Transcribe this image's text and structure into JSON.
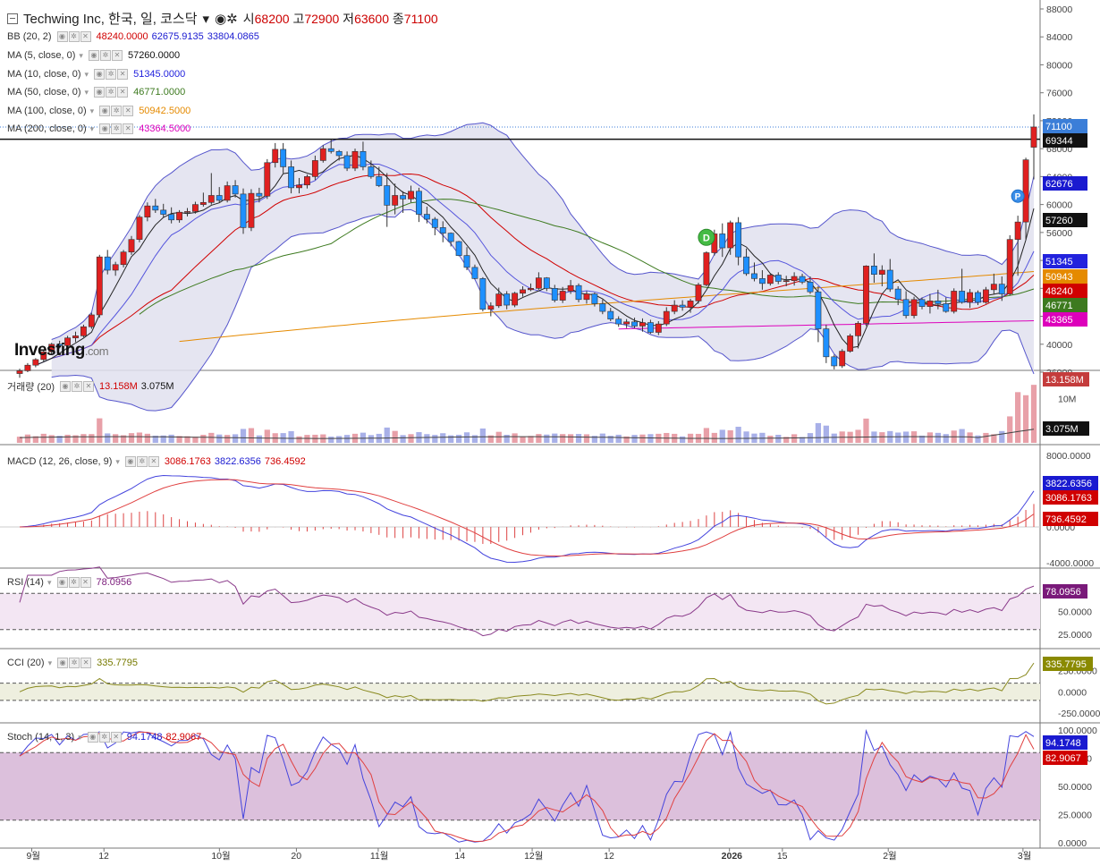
{
  "header": {
    "title": "Techwing Inc, 한국, 일, 코스닥",
    "open_label": "시",
    "open": "68200",
    "high_label": "고",
    "high": "72900",
    "low_label": "저",
    "low": "63600",
    "close_label": "종",
    "close": "71100"
  },
  "brand": {
    "logo": "Investing",
    "logo_suffix": ".com"
  },
  "legends": {
    "bb": {
      "name": "BB (20, 2)",
      "values": [
        "48240.0000",
        "62675.9135",
        "33804.0865"
      ],
      "colors": [
        "#d00000",
        "#1a1ad0",
        "#1a1ad0"
      ]
    },
    "ma5": {
      "name": "MA (5, close, 0)",
      "value": "57260.0000",
      "color": "#111111"
    },
    "ma10": {
      "name": "MA (10, close, 0)",
      "value": "51345.0000",
      "color": "#2222dd"
    },
    "ma50": {
      "name": "MA (50, close, 0)",
      "value": "46771.0000",
      "color": "#3d7a1f"
    },
    "ma100": {
      "name": "MA (100, close, 0)",
      "value": "50942.5000",
      "color": "#e58a00"
    },
    "ma200": {
      "name": "MA (200, close, 0)",
      "value": "43364.5000",
      "color": "#dd00bb"
    },
    "vol": {
      "name": "거래량 (20)",
      "values": [
        "13.158M",
        "3.075M"
      ],
      "colors": [
        "#d00000",
        "#111111"
      ]
    },
    "macd": {
      "name": "MACD (12, 26, close, 9)",
      "values": [
        "3086.1763",
        "3822.6356",
        "736.4592"
      ],
      "colors": [
        "#d00000",
        "#1a1ad0",
        "#d00000"
      ]
    },
    "rsi": {
      "name": "RSI (14)",
      "value": "78.0956",
      "color": "#7a1a7a"
    },
    "cci": {
      "name": "CCI (20)",
      "value": "335.7795",
      "color": "#777a00"
    },
    "stoch": {
      "name": "Stoch (14, 1, 3)",
      "values": [
        "94.1748",
        "82.9067"
      ],
      "colors": [
        "#1a1ad0",
        "#d00000"
      ]
    }
  },
  "price_axis": {
    "ticks": [
      "88000",
      "84000",
      "80000",
      "76000",
      "72000",
      "68000",
      "64000",
      "60000",
      "56000",
      "52000",
      "48000",
      "44000",
      "40000",
      "36000"
    ]
  },
  "price_badges": [
    {
      "label": "71100",
      "value": 71100,
      "bg": "#3b7ed8"
    },
    {
      "label": "69344",
      "value": 69344,
      "bg": "#111111"
    },
    {
      "label": "62676",
      "value": 62676,
      "bg": "#1a1ad0"
    },
    {
      "label": "57260",
      "value": 57260,
      "bg": "#111111"
    },
    {
      "label": "51345",
      "value": 51345,
      "bg": "#2222dd"
    },
    {
      "label": "50943",
      "value": 50943,
      "bg": "#e58a00"
    },
    {
      "label": "48240",
      "value": 48240,
      "bg": "#d00000"
    },
    {
      "label": "46771",
      "value": 46771,
      "bg": "#3d7a1f"
    },
    {
      "label": "43365",
      "value": 43365,
      "bg": "#dd00bb"
    }
  ],
  "volume_axis": {
    "ticks": [
      "10M"
    ],
    "badges": [
      {
        "label": "13.158M",
        "bg": "#c43c3c"
      },
      {
        "label": "3.075M",
        "bg": "#111111"
      }
    ]
  },
  "macd_axis": {
    "ticks": [
      "8000.0000",
      "0.0000",
      "-4000.0000"
    ],
    "badges": [
      {
        "label": "3822.6356",
        "bg": "#1a1ad0"
      },
      {
        "label": "3086.1763",
        "bg": "#d00000"
      },
      {
        "label": "736.4592",
        "bg": "#d00000"
      }
    ]
  },
  "rsi_axis": {
    "ticks": [
      "50.0000",
      "25.0000"
    ],
    "badge": "78.0956",
    "badge_bg": "#7a1a7a"
  },
  "cci_axis": {
    "ticks": [
      "250.0000",
      "0.0000",
      "-250.0000"
    ],
    "badge": "335.7795",
    "badge_bg": "#8a8a00"
  },
  "stoch_axis": {
    "ticks": [
      "100.0000",
      "75.0000",
      "50.0000",
      "25.0000",
      "0.0000"
    ],
    "badges": [
      {
        "label": "94.1748",
        "bg": "#1a1ad0"
      },
      {
        "label": "82.9067",
        "bg": "#d00000"
      }
    ]
  },
  "markers": [
    {
      "label": "D",
      "color": "#44bb44"
    },
    {
      "label": "P",
      "color": "#3b8ee8"
    }
  ],
  "time_axis": {
    "labels": [
      "9월",
      "12",
      "10월",
      "20",
      "11월",
      "14",
      "12월",
      "12",
      "2026",
      "15",
      "2월",
      "3월"
    ]
  },
  "colors": {
    "up": "#e02020",
    "down": "#1e90ff",
    "bb_fill": "#e0e0ef",
    "bb_line": "#5555cc"
  },
  "chart_data": {
    "type": "candlestick",
    "note_series": "daily candles, ~117 sessions from late Aug to early Mar",
    "ohlc": [
      [
        35800,
        36500,
        35200,
        36200
      ],
      [
        36200,
        37300,
        36000,
        37000
      ],
      [
        37000,
        38000,
        36700,
        37800
      ],
      [
        37800,
        39200,
        37500,
        38900
      ],
      [
        38900,
        40200,
        38600,
        40000
      ],
      [
        40000,
        40500,
        39400,
        39800
      ],
      [
        39800,
        41200,
        39600,
        40900
      ],
      [
        40900,
        41800,
        40300,
        41200
      ],
      [
        41200,
        42800,
        41000,
        42500
      ],
      [
        42500,
        44500,
        42200,
        44200
      ],
      [
        44200,
        52800,
        43800,
        52500
      ],
      [
        52500,
        53500,
        50000,
        50600
      ],
      [
        50600,
        51800,
        49800,
        51400
      ],
      [
        51400,
        53500,
        51000,
        53200
      ],
      [
        53200,
        55500,
        52800,
        55000
      ],
      [
        55000,
        58500,
        54600,
        58200
      ],
      [
        58200,
        60300,
        57600,
        59800
      ],
      [
        59800,
        60800,
        58800,
        59200
      ],
      [
        59200,
        60100,
        58200,
        58600
      ],
      [
        58600,
        59600,
        57300,
        57800
      ],
      [
        57800,
        59200,
        57400,
        58900
      ],
      [
        58900,
        59500,
        58300,
        59000
      ],
      [
        59000,
        60400,
        58700,
        60000
      ],
      [
        60000,
        61700,
        59700,
        60300
      ],
      [
        60300,
        64500,
        60000,
        61300
      ],
      [
        61300,
        62500,
        60300,
        60600
      ],
      [
        60600,
        63300,
        60300,
        62700
      ],
      [
        62700,
        63500,
        61000,
        61500
      ],
      [
        61500,
        62300,
        55800,
        56700
      ],
      [
        56700,
        62200,
        56200,
        61600
      ],
      [
        61600,
        62400,
        60300,
        61200
      ],
      [
        61200,
        66500,
        60800,
        66000
      ],
      [
        66000,
        68800,
        65300,
        67900
      ],
      [
        67900,
        68800,
        64500,
        65400
      ],
      [
        65400,
        66300,
        61600,
        62400
      ],
      [
        62400,
        63800,
        61600,
        62800
      ],
      [
        62800,
        64300,
        62300,
        64000
      ],
      [
        64000,
        67000,
        63500,
        66300
      ],
      [
        66300,
        68500,
        66000,
        68000
      ],
      [
        68000,
        69300,
        67300,
        67600
      ],
      [
        67600,
        67800,
        66300,
        67000
      ],
      [
        67000,
        67600,
        64800,
        65200
      ],
      [
        65200,
        68000,
        64800,
        67600
      ],
      [
        67600,
        69000,
        64900,
        65400
      ],
      [
        65400,
        66300,
        63700,
        64000
      ],
      [
        64000,
        65400,
        62500,
        62700
      ],
      [
        62700,
        64500,
        56800,
        59900
      ],
      [
        59900,
        63000,
        58600,
        61300
      ],
      [
        61300,
        61900,
        58800,
        60800
      ],
      [
        60800,
        62700,
        60300,
        61900
      ],
      [
        61900,
        62400,
        57500,
        58600
      ],
      [
        58600,
        59700,
        57300,
        57900
      ],
      [
        57900,
        58200,
        55600,
        56700
      ],
      [
        56700,
        57600,
        54600,
        55900
      ],
      [
        55900,
        56000,
        54000,
        54700
      ],
      [
        54700,
        54800,
        52600,
        52700
      ],
      [
        52700,
        53900,
        50600,
        51000
      ],
      [
        51000,
        51400,
        49300,
        49400
      ],
      [
        49400,
        49600,
        44700,
        45000
      ],
      [
        45000,
        46000,
        44000,
        45500
      ],
      [
        45500,
        48100,
        45200,
        47200
      ],
      [
        47200,
        47600,
        45000,
        45600
      ],
      [
        45600,
        47500,
        45300,
        47300
      ],
      [
        47300,
        48300,
        46800,
        47800
      ],
      [
        47800,
        48700,
        47600,
        48000
      ],
      [
        48000,
        50300,
        47800,
        49500
      ],
      [
        49500,
        49600,
        47600,
        48000
      ],
      [
        48000,
        48500,
        46000,
        46300
      ],
      [
        46300,
        48200,
        45900,
        47600
      ],
      [
        47600,
        49200,
        47200,
        48400
      ],
      [
        48400,
        48700,
        46000,
        46400
      ],
      [
        46400,
        47600,
        45800,
        47200
      ],
      [
        47200,
        47400,
        45400,
        45800
      ],
      [
        45800,
        46400,
        44300,
        44700
      ],
      [
        44700,
        45200,
        43300,
        43600
      ],
      [
        43600,
        44000,
        42500,
        42900
      ],
      [
        42900,
        43600,
        42300,
        43200
      ],
      [
        43200,
        43800,
        42300,
        42600
      ],
      [
        42600,
        43700,
        41800,
        43100
      ],
      [
        43100,
        43500,
        41500,
        41700
      ],
      [
        41700,
        43300,
        41300,
        42900
      ],
      [
        42900,
        45300,
        42600,
        44700
      ],
      [
        44700,
        46300,
        44300,
        45600
      ],
      [
        45600,
        46300,
        44800,
        45300
      ],
      [
        45300,
        46500,
        44500,
        46200
      ],
      [
        46200,
        48800,
        45800,
        48500
      ],
      [
        48500,
        53300,
        48300,
        53100
      ],
      [
        53100,
        56400,
        52700,
        55800
      ],
      [
        55800,
        57300,
        52500,
        53800
      ],
      [
        53800,
        57700,
        52800,
        57400
      ],
      [
        57400,
        58200,
        51300,
        52500
      ],
      [
        52500,
        53700,
        49800,
        50100
      ],
      [
        50100,
        51700,
        49000,
        49400
      ],
      [
        49400,
        50600,
        47800,
        48700
      ],
      [
        48700,
        50200,
        48400,
        49900
      ],
      [
        49900,
        50300,
        48600,
        49000
      ],
      [
        49000,
        49800,
        48300,
        49100
      ],
      [
        49100,
        50300,
        48400,
        49700
      ],
      [
        49700,
        50100,
        48600,
        48900
      ],
      [
        48900,
        49700,
        47200,
        47500
      ],
      [
        47500,
        48300,
        40300,
        42200
      ],
      [
        42200,
        42800,
        37300,
        38200
      ],
      [
        38200,
        38500,
        36400,
        36900
      ],
      [
        36900,
        39300,
        36600,
        39000
      ],
      [
        39000,
        41500,
        38800,
        41200
      ],
      [
        41200,
        43300,
        39400,
        43000
      ],
      [
        43000,
        51300,
        42600,
        51200
      ],
      [
        51200,
        53000,
        48800,
        50000
      ],
      [
        50000,
        51300,
        48300,
        50600
      ],
      [
        50600,
        52200,
        47500,
        47900
      ],
      [
        47900,
        48300,
        45600,
        46400
      ],
      [
        46400,
        47600,
        43700,
        44100
      ],
      [
        44100,
        46800,
        43700,
        46400
      ],
      [
        46400,
        46700,
        45000,
        45400
      ],
      [
        45400,
        47200,
        44400,
        46200
      ],
      [
        46200,
        47800,
        45000,
        45800
      ],
      [
        45800,
        46700,
        44500,
        44700
      ],
      [
        44700,
        48000,
        44400,
        47600
      ]
    ],
    "ohlc_recent": [
      [
        47600,
        50800,
        45800,
        46000
      ],
      [
        46000,
        47900,
        45200,
        47400
      ],
      [
        47400,
        47700,
        45600,
        46000
      ],
      [
        46000,
        48200,
        45800,
        47800
      ],
      [
        47800,
        50100,
        47200,
        48600
      ],
      [
        48600,
        49700,
        46200,
        47200
      ],
      [
        47200,
        55600,
        47000,
        55000
      ],
      [
        55000,
        58400,
        49800,
        57500
      ],
      [
        57500,
        66700,
        55000,
        66400
      ],
      [
        68200,
        72900,
        63600,
        71100
      ]
    ],
    "price_ylim": [
      36000,
      88000
    ],
    "last_close": 71100,
    "ma_last": {
      "ma5": 57260,
      "ma10": 51345,
      "ma50": 46771,
      "ma100": 50942.5,
      "ma200": 43364.5
    },
    "bb_last": {
      "mid": 48240,
      "upper": 62675.9135,
      "lower": 33804.0865
    },
    "volume_last": 13158000,
    "volume_ma20_last": 3075000,
    "macd_last": {
      "macd": 3822.6356,
      "signal": 3086.1763,
      "hist": 736.4592
    },
    "rsi_last": 78.0956,
    "cci_last": 335.7795,
    "stoch_last": {
      "k": 94.1748,
      "d": 82.9067
    }
  }
}
